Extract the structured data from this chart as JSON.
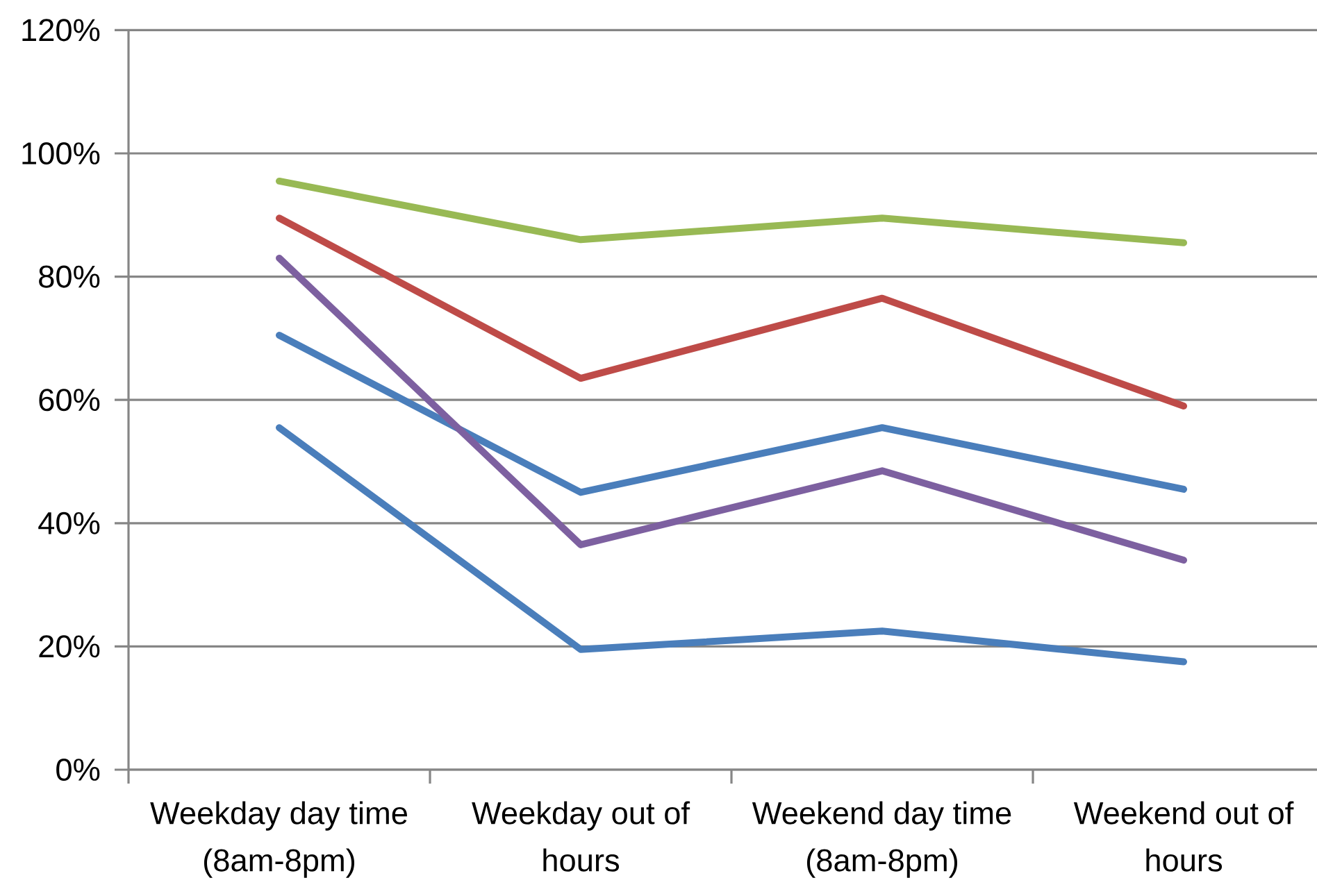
{
  "chart_data": {
    "type": "line",
    "categories": [
      "Weekday day time (8am-8pm)",
      "Weekday out of hours",
      "Weekend day time (8am-8pm)",
      "Weekend out of hours"
    ],
    "series": [
      {
        "color": "#4a7ebb",
        "values": [
          70.5,
          45,
          55.5,
          45.5
        ]
      },
      {
        "color": "#be4b48",
        "values": [
          89.5,
          63.5,
          76.5,
          59
        ]
      },
      {
        "color": "#98b954",
        "values": [
          95.5,
          86,
          89.5,
          85.5
        ]
      },
      {
        "color": "#7d60a0",
        "values": [
          83,
          36.5,
          48.5,
          34
        ]
      },
      {
        "color": "#4a7ebb",
        "values": [
          55.5,
          19.5,
          22.5,
          17.5
        ]
      }
    ],
    "ylim": [
      0,
      120
    ],
    "yticks": [
      {
        "value": 0,
        "label": "0%"
      },
      {
        "value": 20,
        "label": "20%"
      },
      {
        "value": 40,
        "label": "40%"
      },
      {
        "value": 60,
        "label": "60%"
      },
      {
        "value": 80,
        "label": "80%"
      },
      {
        "value": 100,
        "label": "100%"
      },
      {
        "value": 120,
        "label": "120%"
      }
    ],
    "grid": "y",
    "line_style": "solid"
  }
}
